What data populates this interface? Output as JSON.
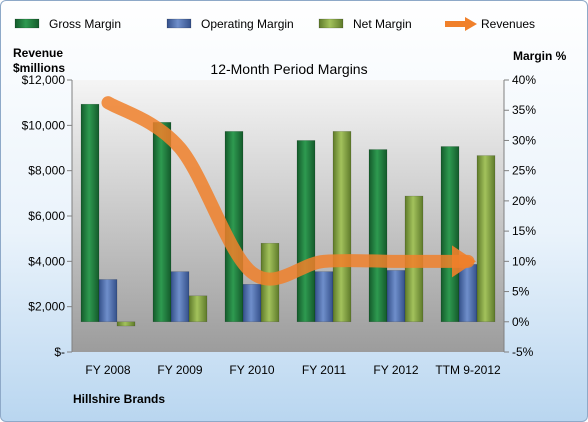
{
  "chart_data": {
    "type": "bar",
    "title": "12-Month Period Margins",
    "company": "Hillshire Brands",
    "categories": [
      "FY 2008",
      "FY 2009",
      "FY 2010",
      "FY 2011",
      "FY 2012",
      "TTM 9-2012"
    ],
    "left_axis": {
      "label_line1": "Revenue",
      "label_line2": "$millions",
      "range": [
        0,
        12000
      ],
      "ticks": [
        0,
        2000,
        4000,
        6000,
        8000,
        10000,
        12000
      ],
      "tick_labels": [
        "$-",
        "$2,000",
        "$4,000",
        "$6,000",
        "$8,000",
        "$10,000",
        "$12,000"
      ]
    },
    "right_axis": {
      "label": "Margin %",
      "range": [
        -5,
        40
      ],
      "ticks": [
        -5,
        0,
        5,
        10,
        15,
        20,
        25,
        30,
        35,
        40
      ],
      "tick_labels": [
        "-5%",
        "0%",
        "5%",
        "10%",
        "15%",
        "20%",
        "25%",
        "30%",
        "35%",
        "40%"
      ]
    },
    "series": [
      {
        "name": "Gross Margin",
        "kind": "bar",
        "axis": "right",
        "color": "#1f7a3c",
        "values": [
          36.0,
          33.0,
          31.5,
          30.0,
          28.5,
          29.0
        ]
      },
      {
        "name": "Operating Margin",
        "kind": "bar",
        "axis": "right",
        "color": "#4f6fad",
        "values": [
          7.0,
          8.3,
          6.2,
          8.3,
          8.5,
          9.5
        ]
      },
      {
        "name": "Net Margin",
        "kind": "bar",
        "axis": "right",
        "color": "#7f9f3e",
        "values": [
          -0.7,
          4.3,
          13.0,
          31.5,
          20.8,
          27.5
        ]
      },
      {
        "name": "Revenues",
        "kind": "line",
        "axis": "left",
        "color": "#f0802a",
        "values": [
          11000,
          9000,
          3500,
          4000,
          4000,
          4000
        ]
      }
    ],
    "grid": false,
    "legend_position": "top"
  }
}
